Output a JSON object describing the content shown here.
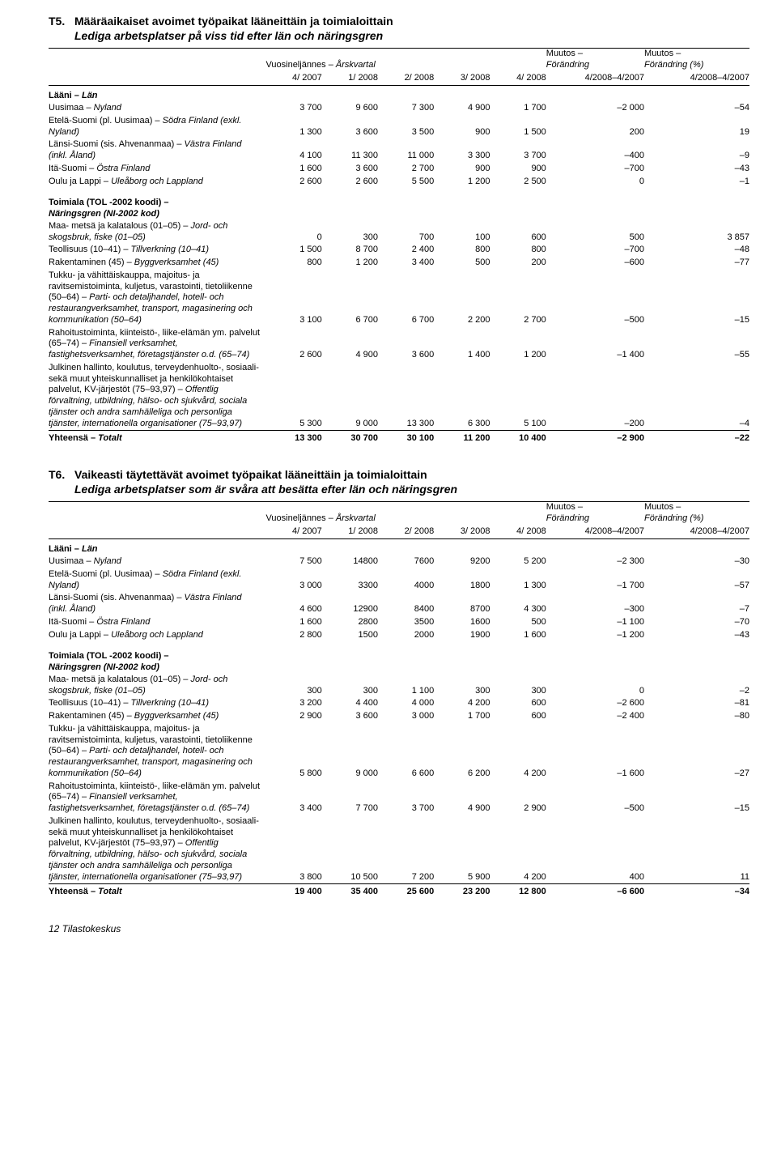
{
  "t5": {
    "num": "T5.",
    "title_fi": "Määräaikaiset avoimet työpaikat lääneittäin ja toimialoittain",
    "title_sv": "Lediga arbetsplatser på viss tid efter län och näringsgren",
    "head": {
      "vuosi": "Vuosineljännes – ",
      "vuosi_sv": "Årskvartal",
      "muutos": "Muutos –",
      "forandring": "Förändring",
      "muutos_pct": "Muutos –",
      "forandring_pct": "Förändring (%)",
      "cols": [
        "4/ 2007",
        "1/ 2008",
        "2/ 2008",
        "3/ 2008",
        "4/ 2008",
        "4/2008–4/2007",
        "4/2008–4/2007"
      ]
    },
    "laani_head": "Lääni – Län",
    "laani_rows": [
      {
        "label": "Uusimaa – Nyland",
        "v": [
          "3 700",
          "9 600",
          "7 300",
          "4 900",
          "1 700",
          "–2 000",
          "–54"
        ]
      },
      {
        "label": "Etelä-Suomi (pl. Uusimaa) – Södra Finland (exkl. Nyland)",
        "v": [
          "1 300",
          "3 600",
          "3 500",
          "900",
          "1 500",
          "200",
          "19"
        ]
      },
      {
        "label": "Länsi-Suomi (sis. Ahvenanmaa) – Västra Finland (inkl. Åland)",
        "v": [
          "4 100",
          "11 300",
          "11 000",
          "3 300",
          "3 700",
          "–400",
          "–9"
        ]
      },
      {
        "label": "Itä-Suomi – Östra Finland",
        "v": [
          "1 600",
          "3 600",
          "2 700",
          "900",
          "900",
          "–700",
          "–43"
        ]
      },
      {
        "label": "Oulu ja Lappi – Uleåborg och Lappland",
        "v": [
          "2 600",
          "2 600",
          "5 500",
          "1 200",
          "2 500",
          "0",
          "–1"
        ]
      }
    ],
    "toimiala_head_fi": "Toimiala (TOL -2002 koodi) –",
    "toimiala_head_sv": "Näringsgren (NI-2002 kod)",
    "toimiala_rows": [
      {
        "label": "Maa- metsä ja kalatalous (01–05) – Jord- och skogsbruk, fiske (01–05)",
        "v": [
          "0",
          "300",
          "700",
          "100",
          "600",
          "500",
          "3 857"
        ]
      },
      {
        "label": "Teollisuus (10–41) – Tillverkning (10–41)",
        "v": [
          "1 500",
          "8 700",
          "2 400",
          "800",
          "800",
          "–700",
          "–48"
        ]
      },
      {
        "label": "Rakentaminen (45) – Byggverksamhet (45)",
        "v": [
          "800",
          "1 200",
          "3 400",
          "500",
          "200",
          "–600",
          "–77"
        ]
      },
      {
        "label": "Tukku- ja vähittäiskauppa, majoitus- ja ravitsemistoiminta, kuljetus, varastointi, tietoliikenne (50–64) – Parti- och detaljhandel, hotell- och restaurangverksamhet, transport, magasinering och kommunikation (50–64)",
        "v": [
          "3 100",
          "6 700",
          "6 700",
          "2 200",
          "2 700",
          "–500",
          "–15"
        ]
      },
      {
        "label": "Rahoitustoiminta, kiinteistö-, liike-elämän ym. palvelut (65–74) – Finansiell verksamhet, fastighetsverksamhet, företagstjänster o.d. (65–74)",
        "v": [
          "2 600",
          "4 900",
          "3 600",
          "1 400",
          "1 200",
          "–1 400",
          "–55"
        ]
      },
      {
        "label": "Julkinen hallinto, koulutus, terveydenhuolto-, sosiaali- sekä muut yhteiskunnalliset ja henkilö­kohtaiset palvelut, KV-järjestöt (75–93,97) – Offentlig förvaltning, utbildning, hälso- och sjuk­vård, sociala tjänster och andra samhälleliga och personliga tjänster, internationella organisationer (75–93,97)",
        "v": [
          "5 300",
          "9 000",
          "13 300",
          "6 300",
          "5 100",
          "–200",
          "–4"
        ]
      }
    ],
    "total": {
      "label": "Yhteensä – Totalt",
      "v": [
        "13 300",
        "30 700",
        "30 100",
        "11 200",
        "10 400",
        "–2 900",
        "–22"
      ]
    }
  },
  "t6": {
    "num": "T6.",
    "title_fi": "Vaikeasti täytettävät avoimet työpaikat lääneittäin ja toimialoittain",
    "title_sv": "Lediga arbetsplatser som är svåra att besätta efter län och näringsgren",
    "head": {
      "vuosi": "Vuosineljännes – ",
      "vuosi_sv": "Årskvartal",
      "muutos": "Muutos –",
      "forandring": "Förändring",
      "muutos_pct": "Muutos –",
      "forandring_pct": "Förändring (%)",
      "cols": [
        "4/ 2007",
        "1/ 2008",
        "2/ 2008",
        "3/ 2008",
        "4/ 2008",
        "4/2008–4/2007",
        "4/2008–4/2007"
      ]
    },
    "laani_head": "Lääni – Län",
    "laani_rows": [
      {
        "label": "Uusimaa – Nyland",
        "v": [
          "7 500",
          "14800",
          "7600",
          "9200",
          "5 200",
          "–2 300",
          "–30"
        ]
      },
      {
        "label": "Etelä-Suomi (pl. Uusimaa) – Södra Finland (exkl. Nyland)",
        "v": [
          "3 000",
          "3300",
          "4000",
          "1800",
          "1 300",
          "–1 700",
          "–57"
        ]
      },
      {
        "label": "Länsi-Suomi (sis. Ahvenanmaa) – Västra Finland (inkl. Åland)",
        "v": [
          "4 600",
          "12900",
          "8400",
          "8700",
          "4 300",
          "–300",
          "–7"
        ]
      },
      {
        "label": "Itä-Suomi – Östra Finland",
        "v": [
          "1 600",
          "2800",
          "3500",
          "1600",
          "500",
          "–1 100",
          "–70"
        ]
      },
      {
        "label": "Oulu ja Lappi – Uleåborg och Lappland",
        "v": [
          "2 800",
          "1500",
          "2000",
          "1900",
          "1 600",
          "–1 200",
          "–43"
        ]
      }
    ],
    "toimiala_head_fi": "Toimiala (TOL -2002 koodi) –",
    "toimiala_head_sv": "Näringsgren (NI-2002 kod)",
    "toimiala_rows": [
      {
        "label": "Maa- metsä ja kalatalous (01–05) – Jord- och skogsbruk, fiske (01–05)",
        "v": [
          "300",
          "300",
          "1 100",
          "300",
          "300",
          "0",
          "–2"
        ]
      },
      {
        "label": "Teollisuus (10–41) – Tillverkning (10–41)",
        "v": [
          "3 200",
          "4 400",
          "4 000",
          "4 200",
          "600",
          "–2 600",
          "–81"
        ]
      },
      {
        "label": "Rakentaminen (45) – Byggverksamhet (45)",
        "v": [
          "2 900",
          "3 600",
          "3 000",
          "1 700",
          "600",
          "–2 400",
          "–80"
        ]
      },
      {
        "label": "Tukku- ja vähittäiskauppa, majoitus- ja ravitsemistoiminta, kuljetus, varastointi, tietoliikenne (50–64) – Parti- och detaljhandel, hotell- och restaurangverksamhet, transport, magasinering och kommunikation (50–64)",
        "v": [
          "5 800",
          "9 000",
          "6 600",
          "6 200",
          "4 200",
          "–1 600",
          "–27"
        ]
      },
      {
        "label": "Rahoitustoiminta, kiinteistö-, liike-elämän ym. palvelut (65–74) – Finansiell verksamhet, fastighetsverksamhet, företagstjänster o.d. (65–74)",
        "v": [
          "3 400",
          "7 700",
          "3 700",
          "4 900",
          "2 900",
          "–500",
          "–15"
        ]
      },
      {
        "label": "Julkinen hallinto, koulutus, terveydenhuolto-, sosiaali- sekä muut yhteiskunnalliset ja henkilö­kohtaiset palvelut, KV-järjestöt (75–93,97) – Offentlig förvaltning, utbildning, hälso- och sjuk­vård, sociala tjänster och andra samhälleliga och personliga tjänster, internationella organisationer (75–93,97)",
        "v": [
          "3 800",
          "10 500",
          "7 200",
          "5 900",
          "4 200",
          "400",
          "11"
        ]
      }
    ],
    "total": {
      "label": "Yhteensä – Totalt",
      "v": [
        "19 400",
        "35 400",
        "25 600",
        "23 200",
        "12 800",
        "–6 600",
        "–34"
      ]
    }
  },
  "footer": "12 Tilastokeskus",
  "colwidths": {
    "label": "31%",
    "c1": "8%",
    "c2": "8%",
    "c3": "8%",
    "c4": "8%",
    "c5": "8%",
    "c6": "14%",
    "c7": "15%"
  }
}
